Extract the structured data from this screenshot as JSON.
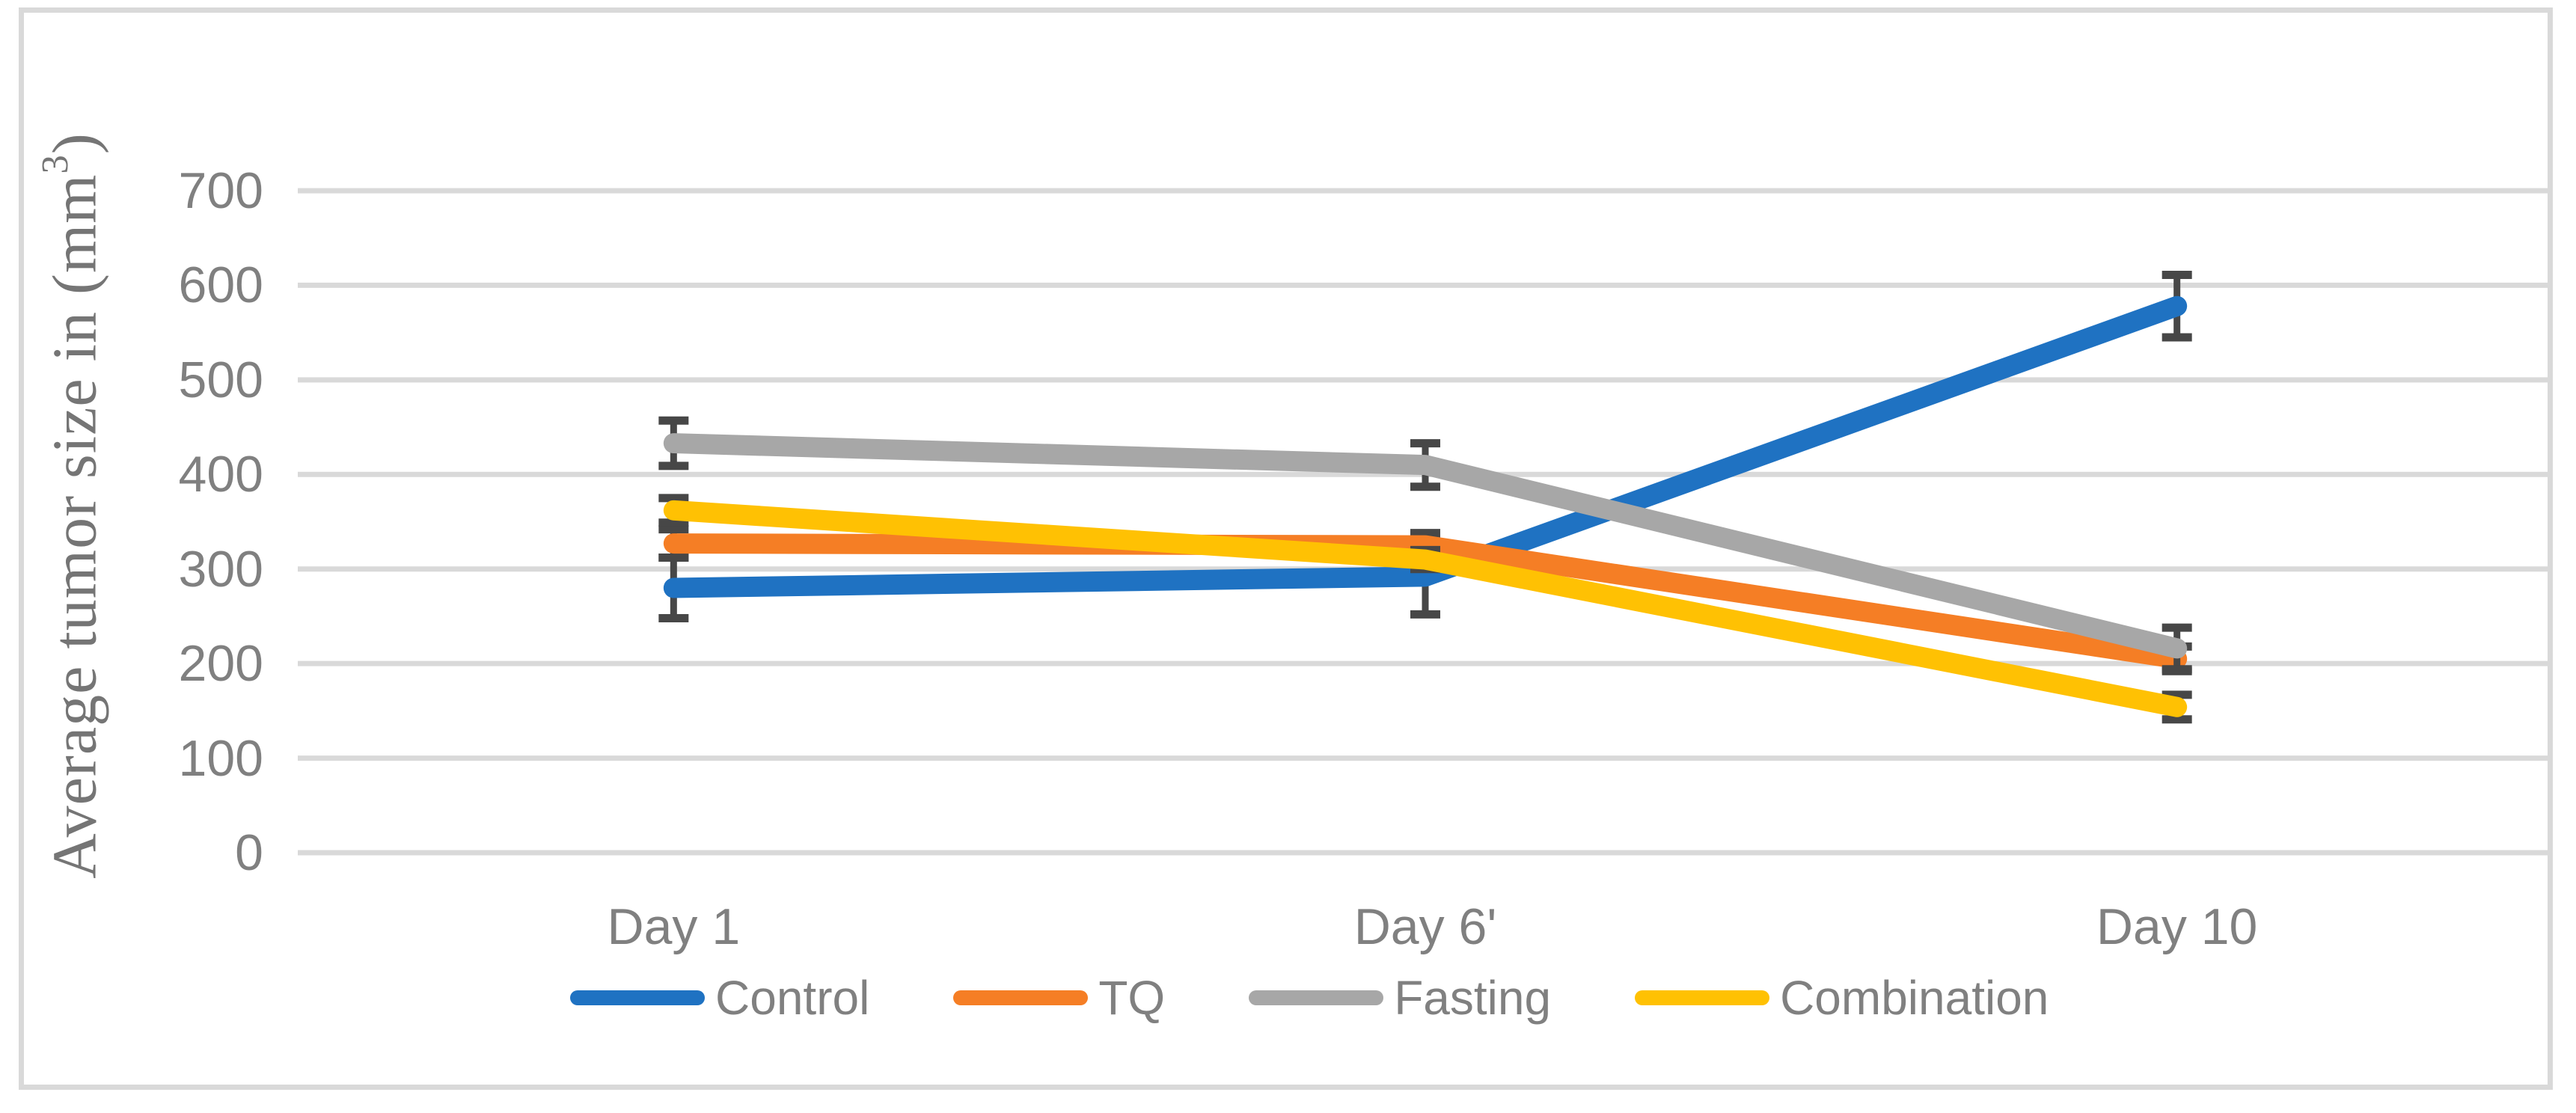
{
  "figure": {
    "background": "#FFFFFF",
    "border_color": "#D9D9D9"
  },
  "chart_data": {
    "type": "line",
    "title": "",
    "ylabel": "Average tumor size in (mm³)",
    "ylabel_prefix": "Average tumor size in (mm",
    "ylabel_sup": "3",
    "ylabel_suffix": ")",
    "xlabel": "",
    "categories": [
      "Day 1",
      "Day 6'",
      "Day 10"
    ],
    "yticks": [
      0,
      100,
      200,
      300,
      400,
      500,
      600,
      700
    ],
    "ylim": [
      0,
      700
    ],
    "grid": true,
    "legend_position": "bottom",
    "axis_text_color": "#808080",
    "gridline_color": "#D9D9D9",
    "error_bar_color": "#474747",
    "series": [
      {
        "name": "Control",
        "color": "#1F72C2",
        "values": [
          280,
          292,
          578
        ],
        "errors": [
          32,
          40,
          33
        ]
      },
      {
        "name": "TQ",
        "color": "#F57E25",
        "values": [
          327,
          325,
          205
        ],
        "errors": [
          15,
          13,
          13
        ]
      },
      {
        "name": "Fasting",
        "color": "#A7A7A7",
        "values": [
          433,
          410,
          216
        ],
        "errors": [
          24,
          23,
          22
        ]
      },
      {
        "name": "Combination",
        "color": "#FFC103",
        "values": [
          362,
          310,
          154
        ],
        "errors": [
          13,
          10,
          13
        ]
      }
    ]
  }
}
